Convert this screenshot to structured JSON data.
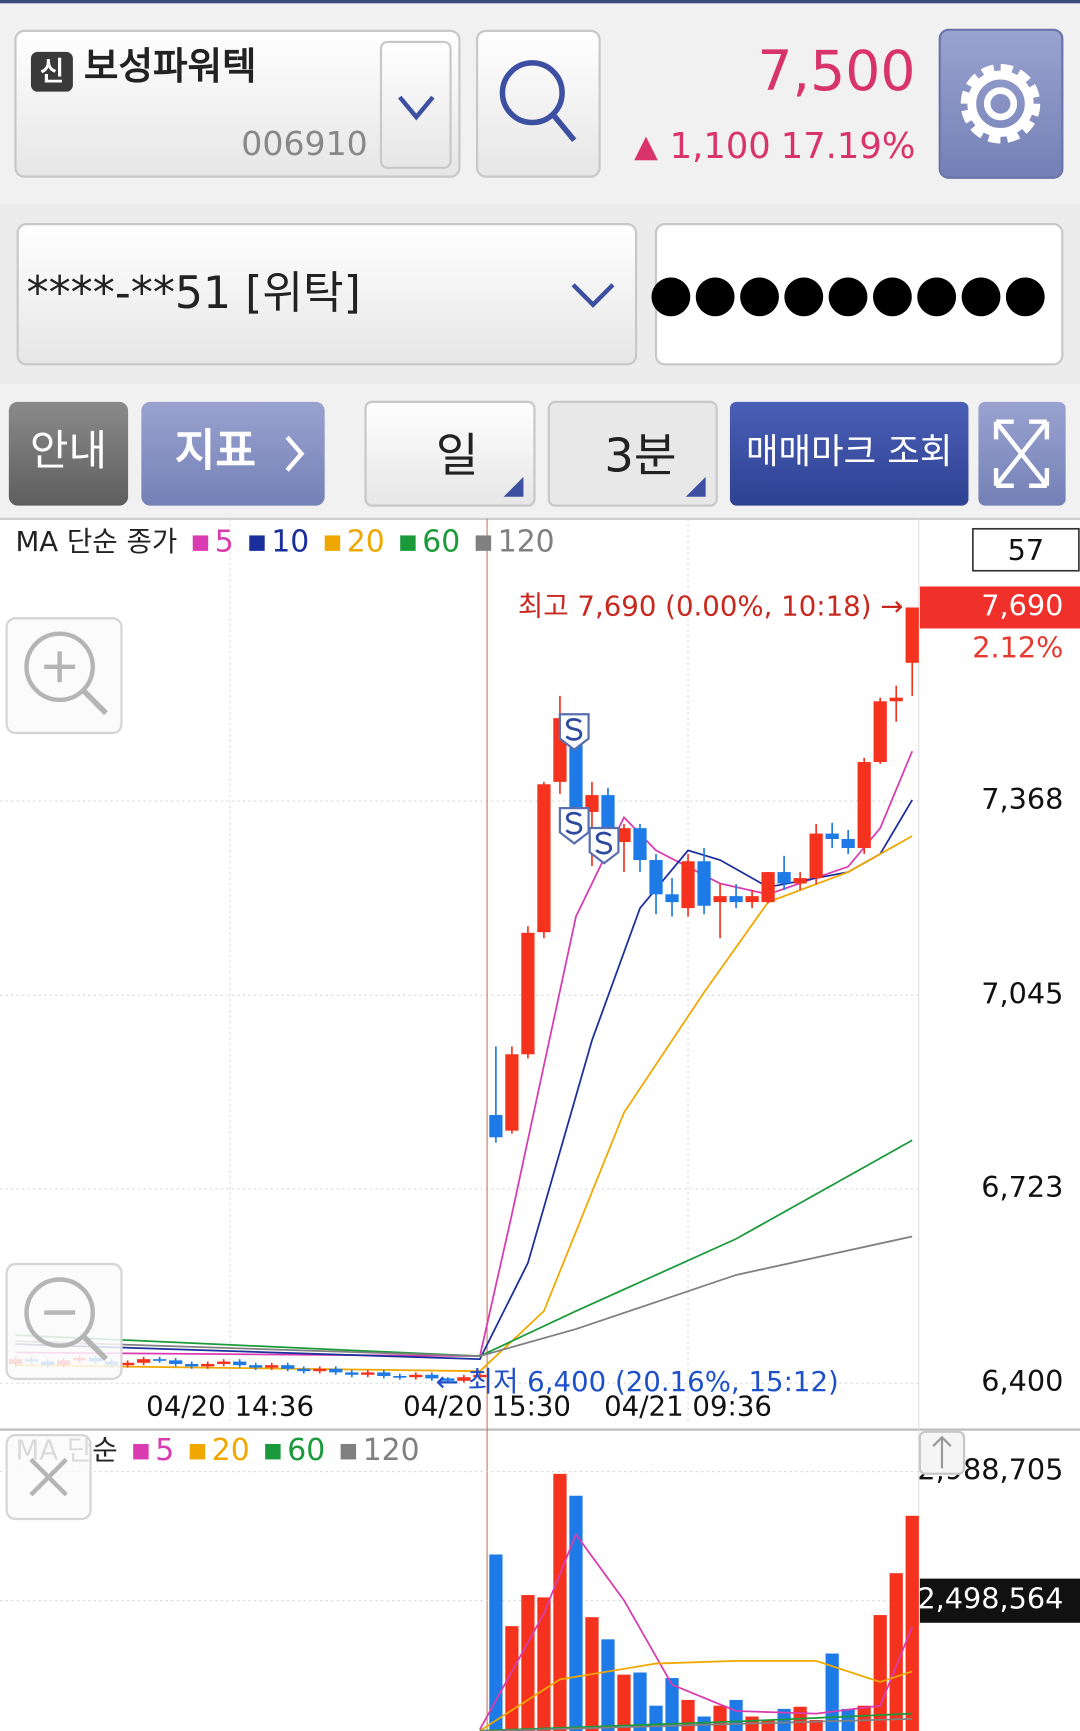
{
  "header": {
    "badge": "신",
    "name": "보성파워텍",
    "code": "006910",
    "price": "7,500",
    "arrow": "▲",
    "change": "1,100",
    "rate": "17.19%"
  },
  "account": {
    "number": "****-**51 [위탁]",
    "password": "●●●●●●●●●"
  },
  "toolbar": {
    "guide": "안내",
    "indicator": "지표",
    "period": "일",
    "interval": "3분",
    "mark": "매매마크 조회"
  },
  "chart_data": [
    {
      "type": "candlestick",
      "legend_title": "MA 단순 종가",
      "up_color": "#f5321e",
      "down_color": "#1e7ae6",
      "xlim": [
        -0.97,
        56.41
      ],
      "ylim": [
        6332,
        7819
      ],
      "xticks": [
        {
          "value": 13.4,
          "label": "04/20 14:36"
        },
        {
          "value": 29.45,
          "label": "04/20 15:30"
        },
        {
          "value": 42,
          "label": "04/21 09:36"
        }
      ],
      "yticks": [
        {
          "value": 6400,
          "label": "6,400"
        },
        {
          "value": 6723,
          "label": "6,723"
        },
        {
          "value": 7045,
          "label": "7,045"
        },
        {
          "value": 7368,
          "label": "7,368"
        }
      ],
      "grid": true,
      "open": [
        6432,
        6440,
        6436,
        6430,
        6438,
        6442,
        6436,
        6430,
        6434,
        6440,
        6438,
        6432,
        6428,
        6432,
        6436,
        6430,
        6426,
        6430,
        6424,
        6420,
        6424,
        6418,
        6414,
        6418,
        6412,
        6410,
        6414,
        6408,
        6404,
        6410,
        6846,
        6820,
        6947,
        7150,
        7400,
        7506,
        7350,
        7378,
        7300,
        7323,
        7270,
        7213,
        7190,
        7268,
        7200,
        7210,
        7200,
        7200,
        7250,
        7231,
        7240,
        7314,
        7305,
        7290,
        7433,
        7534,
        7598
      ],
      "high": [
        6444,
        6444,
        6440,
        6442,
        6446,
        6446,
        6440,
        6438,
        6444,
        6444,
        6442,
        6436,
        6436,
        6440,
        6440,
        6434,
        6434,
        6434,
        6428,
        6428,
        6428,
        6422,
        6422,
        6422,
        6416,
        6418,
        6418,
        6410,
        6414,
        6418,
        6960,
        6960,
        7160,
        7400,
        7543,
        7510,
        7400,
        7390,
        7330,
        7330,
        7280,
        7240,
        7280,
        7290,
        7230,
        7230,
        7220,
        7250,
        7277,
        7250,
        7330,
        7332,
        7320,
        7440,
        7540,
        7560,
        7690
      ],
      "low": [
        6428,
        6432,
        6426,
        6426,
        6434,
        6432,
        6426,
        6426,
        6430,
        6434,
        6428,
        6424,
        6424,
        6428,
        6426,
        6422,
        6422,
        6420,
        6416,
        6416,
        6414,
        6410,
        6410,
        6408,
        6406,
        6406,
        6404,
        6400,
        6401,
        6406,
        6800,
        6815,
        6940,
        7140,
        7380,
        7330,
        7260,
        7270,
        7250,
        7250,
        7180,
        7176,
        7176,
        7180,
        7140,
        7190,
        7190,
        7198,
        7220,
        7220,
        7230,
        7290,
        7280,
        7280,
        7430,
        7500,
        7543
      ],
      "close": [
        6440,
        6436,
        6430,
        6438,
        6442,
        6436,
        6430,
        6434,
        6440,
        6438,
        6432,
        6428,
        6432,
        6436,
        6430,
        6426,
        6430,
        6424,
        6420,
        6424,
        6418,
        6414,
        6418,
        6412,
        6410,
        6414,
        6408,
        6404,
        6410,
        6414,
        6809,
        6947,
        7149,
        7396,
        7506,
        7350,
        7378,
        7305,
        7323,
        7270,
        7213,
        7200,
        7268,
        7194,
        7210,
        7200,
        7210,
        7250,
        7231,
        7240,
        7314,
        7305,
        7290,
        7433,
        7534,
        7540,
        7690
      ],
      "series": [
        {
          "name": "5",
          "color": "#d93cb0",
          "x": [
            0,
            29,
            31,
            35,
            38,
            40,
            44,
            47,
            52,
            54,
            56
          ],
          "values": [
            6451,
            6445,
            6681,
            7176,
            7341,
            7286,
            7231,
            7213,
            7259,
            7323,
            7451
          ]
        },
        {
          "name": "10",
          "color": "#1a2f9c",
          "x": [
            0,
            29,
            32,
            36,
            39,
            42,
            44,
            47,
            52,
            54,
            56
          ],
          "values": [
            6465,
            6440,
            6600,
            6970,
            7190,
            7286,
            7270,
            7225,
            7250,
            7280,
            7370
          ]
        },
        {
          "name": "20",
          "color": "#f0a800",
          "x": [
            0,
            29,
            33,
            38,
            43,
            47,
            52,
            56
          ],
          "values": [
            6430,
            6420,
            6520,
            6850,
            7050,
            7200,
            7250,
            7310
          ]
        },
        {
          "name": "60",
          "color": "#1a9a3a",
          "x": [
            0,
            29,
            35,
            45,
            56
          ],
          "values": [
            6480,
            6445,
            6520,
            6640,
            6804
          ]
        },
        {
          "name": "120",
          "color": "#808080",
          "x": [
            0,
            29,
            35,
            45,
            56
          ],
          "values": [
            6470,
            6445,
            6490,
            6580,
            6644
          ]
        }
      ],
      "count": "57",
      "price_marker": {
        "value": 7690,
        "label": "7,690",
        "change": "2.12%"
      },
      "annotations": [
        {
          "text": "최고 7,690 (0.00%, 10:18) →",
          "x": 56,
          "y": 7690,
          "color": "#c8281e"
        },
        {
          "text": "← 최저 6,400 (20.16%, 15:12)",
          "x": 27,
          "y": 6400,
          "color": "#1e50c8"
        }
      ]
    },
    {
      "type": "bar",
      "legend_title": "MA 단순",
      "xlim": [
        -0.97,
        56.41
      ],
      "ylim": [
        2004000,
        3127000
      ],
      "yticks": [
        {
          "value": 2988705,
          "label": "2,988,705"
        },
        {
          "value": 2498564,
          "label": "2,498,564"
        }
      ],
      "current_tick": 1,
      "values": [
        null,
        null,
        null,
        null,
        null,
        null,
        null,
        null,
        null,
        null,
        null,
        null,
        null,
        null,
        null,
        null,
        null,
        null,
        null,
        null,
        null,
        null,
        null,
        null,
        null,
        null,
        null,
        null,
        null,
        null,
        2674000,
        2402000,
        2520000,
        2511000,
        2980000,
        2897000,
        2436000,
        2352000,
        2218000,
        2226000,
        2100000,
        2205000,
        2122000,
        2059000,
        2100000,
        2122000,
        2059000,
        2046000,
        2088000,
        2096000,
        2046000,
        2298000,
        2088000,
        2100000,
        2444000,
        2603000,
        2821000
      ],
      "series": [
        {
          "name": "5",
          "color": "#d93cb0",
          "x": [
            29,
            33,
            35,
            38,
            41,
            45,
            50,
            54,
            56
          ],
          "values": [
            2010000,
            2450000,
            2750000,
            2500000,
            2180000,
            2080000,
            2070000,
            2100000,
            2400000
          ]
        },
        {
          "name": "20",
          "color": "#f0a800",
          "x": [
            29,
            34,
            40,
            45,
            50,
            54,
            56
          ],
          "values": [
            2005000,
            2200000,
            2260000,
            2270000,
            2270000,
            2190000,
            2230000
          ]
        },
        {
          "name": "60",
          "color": "#1a9a3a",
          "x": [
            29,
            45,
            56
          ],
          "values": [
            2005000,
            2040000,
            2070000
          ]
        },
        {
          "name": "120",
          "color": "#808080",
          "x": [
            29,
            56
          ],
          "values": [
            2003000,
            2050000
          ]
        }
      ]
    }
  ]
}
